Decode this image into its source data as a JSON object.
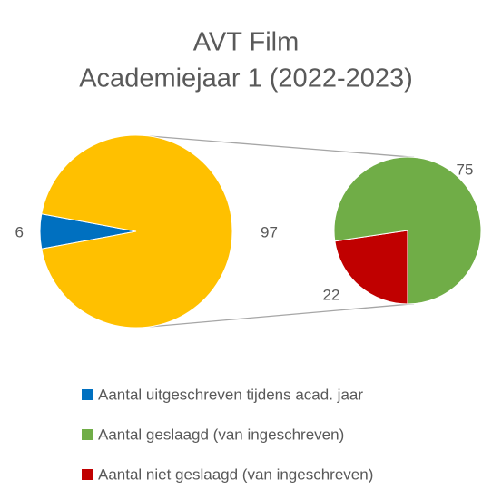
{
  "chart_data": {
    "type": "pie_of_pie",
    "title_lines": [
      "AVT Film",
      "Academiejaar 1 (2022-2023)"
    ],
    "primary": [
      {
        "name": "Aantal uitgeschreven tijdens acad. jaar",
        "color": "#0070c0",
        "value": 6
      }
    ],
    "other": {
      "color": "#ffc000",
      "value": 97
    },
    "secondary": [
      {
        "name": "Aantal geslaagd (van ingeschreven)",
        "color": "#70ad47",
        "value": 75
      },
      {
        "name": "Aantal niet geslaagd (van ingeschreven)",
        "color": "#c00000",
        "value": 22
      }
    ]
  }
}
